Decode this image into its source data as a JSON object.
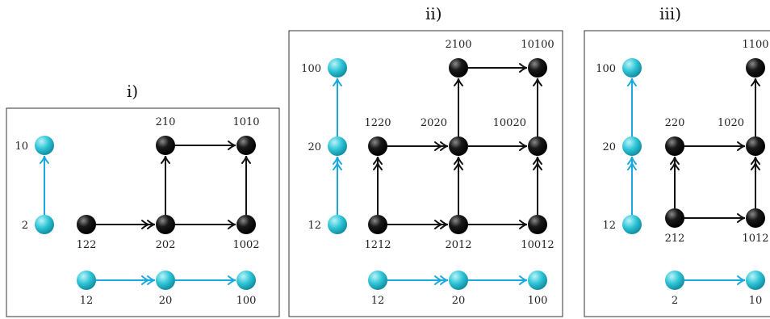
{
  "colors": {
    "node_cyan": "#2EC4D6",
    "node_cyan_highlight": "#B9F3F9",
    "edge_cyan": "#1AA9DF",
    "node_black": "#111111",
    "node_black_highlight": "#8a8a8a",
    "edge_black": "#111111"
  },
  "panels": [
    {
      "title": "i)",
      "nodes": [
        {
          "id": "c10",
          "label": "10",
          "color": "cyan",
          "label_side": "left"
        },
        {
          "id": "c2",
          "label": "2",
          "color": "cyan",
          "label_side": "left"
        },
        {
          "id": "b210",
          "label": "210",
          "color": "black",
          "label_side": "above"
        },
        {
          "id": "b1010",
          "label": "1010",
          "color": "black",
          "label_side": "above"
        },
        {
          "id": "b122",
          "label": "122",
          "color": "black",
          "label_side": "below"
        },
        {
          "id": "b202",
          "label": "202",
          "color": "black",
          "label_side": "below"
        },
        {
          "id": "b1002",
          "label": "1002",
          "color": "black",
          "label_side": "below"
        },
        {
          "id": "c12",
          "label": "12",
          "color": "cyan",
          "label_side": "below"
        },
        {
          "id": "c20",
          "label": "20",
          "color": "cyan",
          "label_side": "below"
        },
        {
          "id": "c100",
          "label": "100",
          "color": "cyan",
          "label_side": "below"
        }
      ],
      "edges": [
        {
          "from": "c2",
          "to": "c10",
          "color": "cyan",
          "heads": 1
        },
        {
          "from": "b122",
          "to": "b202",
          "color": "black",
          "heads": 2
        },
        {
          "from": "b202",
          "to": "b1002",
          "color": "black",
          "heads": 1
        },
        {
          "from": "b202",
          "to": "b210",
          "color": "black",
          "heads": 1
        },
        {
          "from": "b1002",
          "to": "b1010",
          "color": "black",
          "heads": 1
        },
        {
          "from": "b210",
          "to": "b1010",
          "color": "black",
          "heads": 1
        },
        {
          "from": "c12",
          "to": "c20",
          "color": "cyan",
          "heads": 2
        },
        {
          "from": "c20",
          "to": "c100",
          "color": "cyan",
          "heads": 1
        }
      ]
    },
    {
      "title": "ii)",
      "nodes": [
        {
          "id": "c100",
          "label": "100",
          "color": "cyan",
          "label_side": "left"
        },
        {
          "id": "c20",
          "label": "20",
          "color": "cyan",
          "label_side": "left"
        },
        {
          "id": "c12",
          "label": "12",
          "color": "cyan",
          "label_side": "left"
        },
        {
          "id": "b2100",
          "label": "2100",
          "color": "black",
          "label_side": "above"
        },
        {
          "id": "b10100",
          "label": "10100",
          "color": "black",
          "label_side": "above"
        },
        {
          "id": "b1220",
          "label": "1220",
          "color": "black",
          "label_side": "above"
        },
        {
          "id": "b2020",
          "label": "2020",
          "color": "black",
          "label_side": "above-left"
        },
        {
          "id": "b10020",
          "label": "10020",
          "color": "black",
          "label_side": "above-left"
        },
        {
          "id": "b1212",
          "label": "1212",
          "color": "black",
          "label_side": "below"
        },
        {
          "id": "b2012",
          "label": "2012",
          "color": "black",
          "label_side": "below"
        },
        {
          "id": "b10012",
          "label": "10012",
          "color": "black",
          "label_side": "below"
        },
        {
          "id": "c12b",
          "label": "12",
          "color": "cyan",
          "label_side": "below"
        },
        {
          "id": "c20b",
          "label": "20",
          "color": "cyan",
          "label_side": "below"
        },
        {
          "id": "c100b",
          "label": "100",
          "color": "cyan",
          "label_side": "below"
        }
      ],
      "edges": [
        {
          "from": "c20",
          "to": "c100",
          "color": "cyan",
          "heads": 1
        },
        {
          "from": "c12",
          "to": "c20",
          "color": "cyan",
          "heads": 2
        },
        {
          "from": "b2100",
          "to": "b10100",
          "color": "black",
          "heads": 1
        },
        {
          "from": "b2020",
          "to": "b2100",
          "color": "black",
          "heads": 1
        },
        {
          "from": "b10020",
          "to": "b10100",
          "color": "black",
          "heads": 1
        },
        {
          "from": "b1220",
          "to": "b2020",
          "color": "black",
          "heads": 2
        },
        {
          "from": "b2020",
          "to": "b10020",
          "color": "black",
          "heads": 1
        },
        {
          "from": "b1212",
          "to": "b1220",
          "color": "black",
          "heads": 2
        },
        {
          "from": "b2012",
          "to": "b2020",
          "color": "black",
          "heads": 2
        },
        {
          "from": "b10012",
          "to": "b10020",
          "color": "black",
          "heads": 2
        },
        {
          "from": "b1212",
          "to": "b2012",
          "color": "black",
          "heads": 2
        },
        {
          "from": "b2012",
          "to": "b10012",
          "color": "black",
          "heads": 1
        },
        {
          "from": "c12b",
          "to": "c20b",
          "color": "cyan",
          "heads": 2
        },
        {
          "from": "c20b",
          "to": "c100b",
          "color": "cyan",
          "heads": 1
        }
      ]
    },
    {
      "title": "iii)",
      "nodes": [
        {
          "id": "c100",
          "label": "100",
          "color": "cyan",
          "label_side": "left"
        },
        {
          "id": "c20",
          "label": "20",
          "color": "cyan",
          "label_side": "left"
        },
        {
          "id": "c12",
          "label": "12",
          "color": "cyan",
          "label_side": "left"
        },
        {
          "id": "b1100",
          "label": "1100",
          "color": "black",
          "label_side": "above"
        },
        {
          "id": "b220",
          "label": "220",
          "color": "black",
          "label_side": "above"
        },
        {
          "id": "b1020",
          "label": "1020",
          "color": "black",
          "label_side": "above-left"
        },
        {
          "id": "b212",
          "label": "212",
          "color": "black",
          "label_side": "below"
        },
        {
          "id": "b1012",
          "label": "1012",
          "color": "black",
          "label_side": "below"
        },
        {
          "id": "c2",
          "label": "2",
          "color": "cyan",
          "label_side": "below"
        },
        {
          "id": "c10",
          "label": "10",
          "color": "cyan",
          "label_side": "below"
        }
      ],
      "edges": [
        {
          "from": "c20",
          "to": "c100",
          "color": "cyan",
          "heads": 1
        },
        {
          "from": "c12",
          "to": "c20",
          "color": "cyan",
          "heads": 2
        },
        {
          "from": "b1020",
          "to": "b1100",
          "color": "black",
          "heads": 1
        },
        {
          "from": "b220",
          "to": "b1020",
          "color": "black",
          "heads": 1
        },
        {
          "from": "b212",
          "to": "b220",
          "color": "black",
          "heads": 2
        },
        {
          "from": "b1012",
          "to": "b1020",
          "color": "black",
          "heads": 2
        },
        {
          "from": "b212",
          "to": "b1012",
          "color": "black",
          "heads": 1
        },
        {
          "from": "c2",
          "to": "c10",
          "color": "cyan",
          "heads": 1
        }
      ]
    }
  ]
}
